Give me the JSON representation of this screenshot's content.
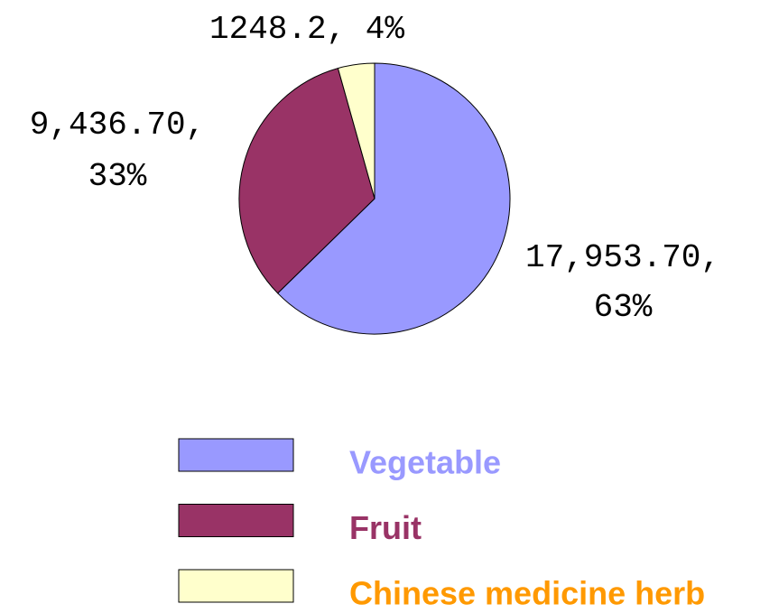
{
  "chart_data": {
    "type": "pie",
    "categories": [
      "Vegetable",
      "Fruit",
      "Chinese medicine herb"
    ],
    "values": [
      17953.7,
      9436.7,
      1248.2
    ],
    "value_labels": [
      "17,953.70, 63%",
      "9,436.70, 33%",
      "1248.2, 4%"
    ],
    "colors": [
      "#9999ff",
      "#993366",
      "#ffffcc"
    ],
    "legend_text_colors": [
      "#9999ff",
      "#993366",
      "#ff9900"
    ]
  }
}
